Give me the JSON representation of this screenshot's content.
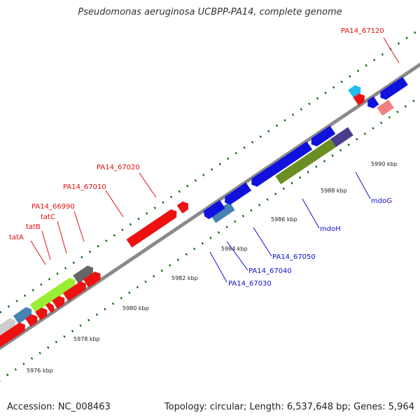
{
  "title": "Pseudomonas aeruginosa UCBPP-PA14, complete genome",
  "footer": {
    "accession": "Accession: NC_008463",
    "summary": "Topology: circular; Length: 6,537,648 bp; Genes: 5,964"
  },
  "ticks": [
    "5976 kbp",
    "5978 kbp",
    "5980 kbp",
    "5982 kbp",
    "5984 kbp",
    "5986 kbp",
    "5988 kbp",
    "5990 kbp"
  ],
  "labels_forward": [
    "tatA",
    "tatB",
    "tatC",
    "PA14_66990",
    "PA14_67010",
    "PA14_67020",
    "PA14_67120"
  ],
  "labels_reverse": [
    "PA14_67030",
    "PA14_67040",
    "PA14_67050",
    "mdoH",
    "mdoG"
  ],
  "colors": {
    "forward": "#ee1111",
    "reverse": "#1111dd",
    "forward_light": "#f08080",
    "cyan": "#22bbee",
    "steel": "#4682b4",
    "olive": "#6b8e23",
    "slate": "#483d8b",
    "lime": "#99ee33",
    "gray": "#666666",
    "lightgray": "#cccccc",
    "tick": "#006400"
  }
}
